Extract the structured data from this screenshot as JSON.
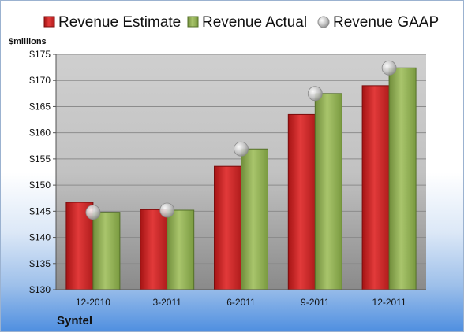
{
  "company": "Syntel",
  "colors": {
    "estimate": "#d42a2a",
    "actual": "#9bbb59",
    "gaap": "#c0c0c0"
  },
  "chart_data": {
    "type": "bar",
    "title": "",
    "ylabel": "$millions",
    "xlabel": "",
    "ylim": [
      130,
      175
    ],
    "ytick_step": 5,
    "ytick_prefix": "$",
    "grid": true,
    "legend": "top",
    "categories": [
      "12-2010",
      "3-2011",
      "6-2011",
      "9-2011",
      "12-2011"
    ],
    "series": [
      {
        "name": "Revenue Estimate",
        "kind": "bar",
        "values": [
          146.7,
          145.3,
          153.6,
          163.5,
          169.0
        ]
      },
      {
        "name": "Revenue Actual",
        "kind": "bar",
        "values": [
          144.8,
          145.2,
          156.9,
          167.5,
          172.4
        ]
      },
      {
        "name": "Revenue GAAP",
        "kind": "marker",
        "values": [
          144.8,
          145.2,
          156.9,
          167.5,
          172.4
        ]
      }
    ]
  }
}
